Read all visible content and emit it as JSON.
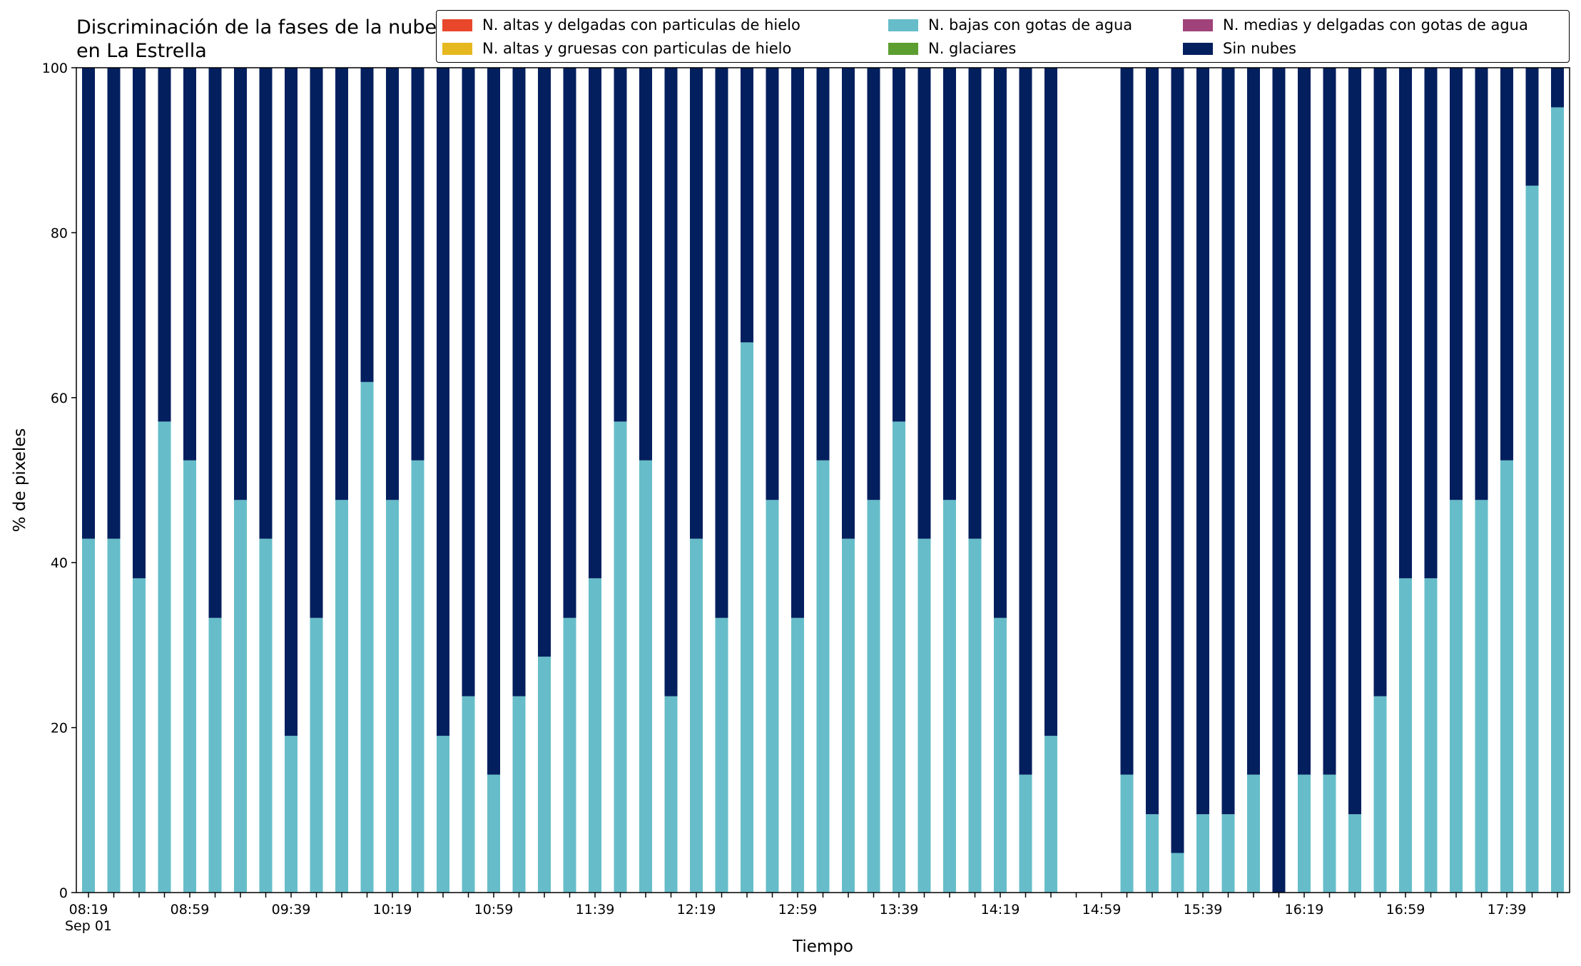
{
  "chart_data": {
    "type": "bar",
    "stacked": true,
    "title": "Discriminación de la fases de la nube en La Estrella",
    "xlabel": "Tiempo",
    "ylabel": "% de pixeles",
    "ylim": [
      0,
      100
    ],
    "yticks": [
      0,
      20,
      40,
      60,
      80,
      100
    ],
    "xtick_labels": [
      "08:19",
      "08:59",
      "09:39",
      "10:19",
      "10:59",
      "11:39",
      "12:19",
      "12:59",
      "13:39",
      "14:19",
      "14:59",
      "15:39",
      "16:19",
      "16:59",
      "17:39"
    ],
    "xtick_sublabel": "Sep 01",
    "legend_position": "top",
    "legend": [
      {
        "name": "N. altas y delgadas con particulas de hielo",
        "color": "#e8472c"
      },
      {
        "name": "N. altas y gruesas con particulas de hielo",
        "color": "#e6b820"
      },
      {
        "name": "N. bajas con gotas de agua",
        "color": "#66bdc9"
      },
      {
        "name": "N. glaciares",
        "color": "#5d9e30"
      },
      {
        "name": "N. medias y delgadas con gotas de agua",
        "color": "#a0437a"
      },
      {
        "name": "Sin nubes",
        "color": "#031f5e"
      }
    ],
    "slots": 59,
    "series": [
      {
        "name": "N. bajas con gotas de agua",
        "color": "#66bdc9",
        "values": [
          42.9,
          42.9,
          38.1,
          57.1,
          52.4,
          33.3,
          47.6,
          42.9,
          19.0,
          33.3,
          47.6,
          61.9,
          47.6,
          52.4,
          19.0,
          23.8,
          14.3,
          23.8,
          28.6,
          33.3,
          38.1,
          57.1,
          52.4,
          23.8,
          42.9,
          33.3,
          66.7,
          47.6,
          33.3,
          52.4,
          42.9,
          47.6,
          57.1,
          42.9,
          47.6,
          42.9,
          33.3,
          14.3,
          19.0,
          null,
          null,
          14.3,
          9.5,
          4.8,
          9.5,
          9.5,
          14.3,
          0,
          14.3,
          14.3,
          9.5,
          23.8,
          38.1,
          38.1,
          47.6,
          47.6,
          52.4,
          85.7,
          95.2
        ]
      },
      {
        "name": "Sin nubes",
        "color": "#031f5e",
        "values": [
          57.1,
          57.1,
          61.9,
          42.9,
          47.6,
          66.7,
          52.4,
          57.1,
          81.0,
          66.7,
          52.4,
          38.1,
          52.4,
          47.6,
          81.0,
          76.2,
          85.7,
          76.2,
          71.4,
          66.7,
          61.9,
          42.9,
          47.6,
          76.2,
          57.1,
          66.7,
          33.3,
          52.4,
          66.7,
          47.6,
          57.1,
          52.4,
          42.9,
          57.1,
          52.4,
          57.1,
          66.7,
          85.7,
          81.0,
          null,
          null,
          85.7,
          90.5,
          95.2,
          90.5,
          90.5,
          85.7,
          100,
          85.7,
          85.7,
          90.5,
          76.2,
          61.9,
          61.9,
          52.4,
          52.4,
          47.6,
          14.3,
          4.8
        ]
      }
    ]
  }
}
